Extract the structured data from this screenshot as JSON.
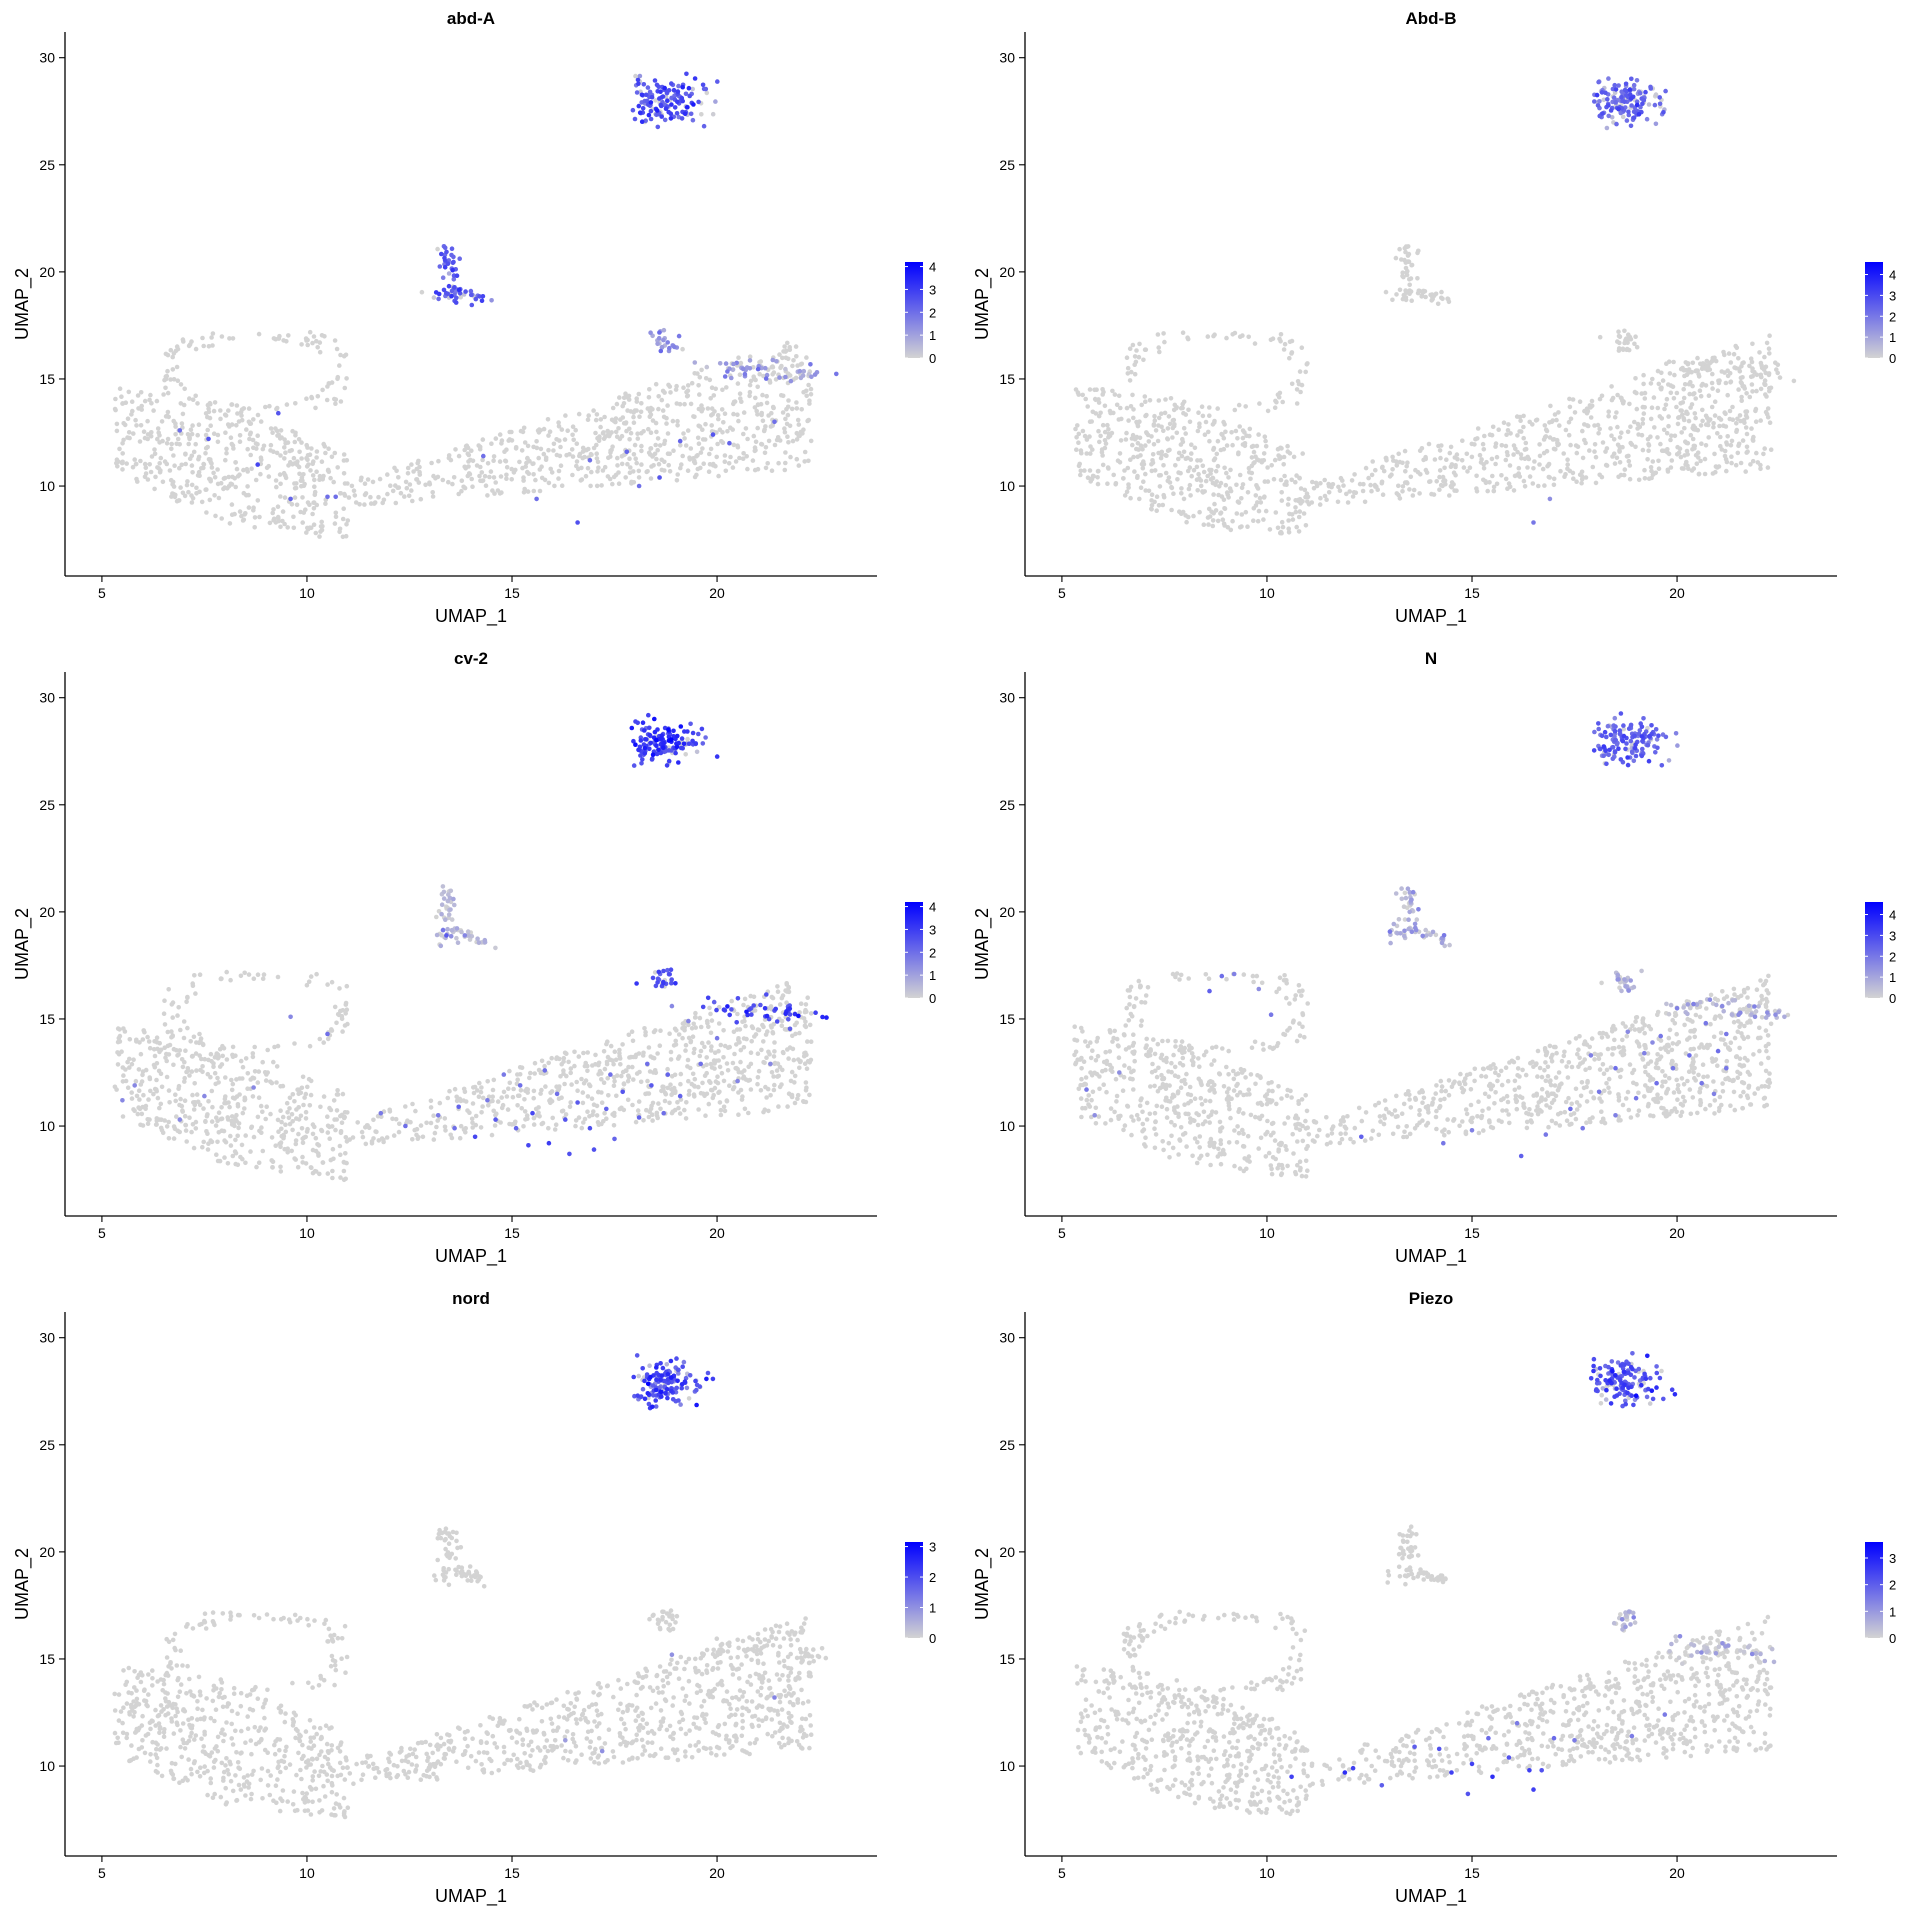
{
  "chart_data": [
    {
      "type": "scatter",
      "title": "abd-A",
      "xlabel": "UMAP_1",
      "ylabel": "UMAP_2",
      "xlim": [
        4.1,
        23.9
      ],
      "ylim": [
        5.8,
        31.2
      ],
      "xticks": [
        5,
        10,
        15,
        20
      ],
      "yticks": [
        10,
        15,
        20,
        25,
        30
      ],
      "grid": false,
      "color_min": "#d3d3d3",
      "color_max": "#0000ff",
      "legend": {
        "position": "right",
        "ticks": [
          0,
          1,
          2,
          3,
          4
        ],
        "max": 4.2
      },
      "seed": 11,
      "cluster_levels": {
        "top": 2.6,
        "mid": 2.4,
        "ext": 1.2,
        "main": 0.0
      },
      "highlights": [
        [
          9.3,
          13.4,
          2.5
        ],
        [
          8.8,
          11,
          2.8
        ],
        [
          10.7,
          9.5,
          2
        ],
        [
          10.5,
          9.5,
          2
        ],
        [
          9.6,
          9.4,
          2.2
        ],
        [
          7.6,
          12.2,
          2.5
        ],
        [
          6.9,
          12.6,
          2
        ],
        [
          16.6,
          8.3,
          2.6
        ],
        [
          15.6,
          9.4,
          2
        ],
        [
          14.3,
          11.4,
          2
        ],
        [
          17.8,
          11.6,
          2.2
        ],
        [
          18.1,
          10,
          2
        ],
        [
          19.1,
          12.1,
          2.2
        ],
        [
          19.9,
          12.4,
          2.5
        ],
        [
          20.3,
          12,
          2.2
        ],
        [
          21.4,
          13,
          2
        ],
        [
          18.6,
          10.4,
          2.5
        ],
        [
          16.9,
          11.2,
          2
        ],
        [
          21.8,
          14.9,
          1.3
        ],
        [
          22.3,
          15.1,
          1.2
        ],
        [
          20.8,
          15.5,
          1.2
        ],
        [
          20.4,
          15.7,
          1.2
        ]
      ]
    },
    {
      "type": "scatter",
      "title": "Abd-B",
      "xlabel": "UMAP_1",
      "ylabel": "UMAP_2",
      "xlim": [
        4.1,
        23.9
      ],
      "ylim": [
        5.8,
        31.2
      ],
      "xticks": [
        5,
        10,
        15,
        20
      ],
      "yticks": [
        10,
        15,
        20,
        25,
        30
      ],
      "grid": false,
      "color_min": "#d3d3d3",
      "color_max": "#0000ff",
      "legend": {
        "position": "right",
        "ticks": [
          0,
          1,
          2,
          3,
          4
        ],
        "max": 4.6
      },
      "seed": 23,
      "cluster_levels": {
        "top": 2.3,
        "mid": 0.0,
        "ext": 0.0,
        "main": 0.0
      },
      "highlights": [
        [
          16.5,
          8.3,
          2
        ],
        [
          16.9,
          9.4,
          1.5
        ]
      ]
    },
    {
      "type": "scatter",
      "title": "cv-2",
      "xlabel": "UMAP_1",
      "ylabel": "UMAP_2",
      "xlim": [
        4.1,
        23.9
      ],
      "ylim": [
        5.8,
        31.2
      ],
      "xticks": [
        5,
        10,
        15,
        20
      ],
      "yticks": [
        10,
        15,
        20,
        25,
        30
      ],
      "grid": false,
      "color_min": "#d3d3d3",
      "color_max": "#0000ff",
      "legend": {
        "position": "right",
        "ticks": [
          0,
          1,
          2,
          3,
          4
        ],
        "max": 4.2
      },
      "seed": 37,
      "cluster_levels": {
        "top": 2.9,
        "mid": 0.4,
        "ext": 2.8,
        "main": 0.0
      },
      "highlights": [
        [
          13.4,
          18.9,
          2.4
        ],
        [
          5.5,
          11.2,
          1.5
        ],
        [
          5.8,
          11.9,
          1.5
        ],
        [
          6.9,
          10.3,
          1.5
        ],
        [
          7.5,
          11.4,
          1.5
        ],
        [
          8.7,
          11.8,
          1.5
        ],
        [
          10.5,
          14.3,
          2
        ],
        [
          9.6,
          15.1,
          1.5
        ],
        [
          11.8,
          10.6,
          1.8
        ],
        [
          12.4,
          10,
          2
        ],
        [
          13.2,
          10.5,
          1.8
        ],
        [
          13.7,
          10.9,
          2.2
        ],
        [
          14.1,
          9.5,
          2.8
        ],
        [
          14.6,
          10.3,
          2.4
        ],
        [
          15.1,
          9.9,
          2.2
        ],
        [
          15.5,
          10.6,
          2.8
        ],
        [
          15.9,
          9.2,
          3
        ],
        [
          16.3,
          10.3,
          2.5
        ],
        [
          16.6,
          11.1,
          2.4
        ],
        [
          16.9,
          9.9,
          2.6
        ],
        [
          17.3,
          10.8,
          2.2
        ],
        [
          17.7,
          11.6,
          2.5
        ],
        [
          18.1,
          10.4,
          2.2
        ],
        [
          18.4,
          11.9,
          2.4
        ],
        [
          18.8,
          12.4,
          2.2
        ],
        [
          19.1,
          11.4,
          2.2
        ],
        [
          19.6,
          12.9,
          2
        ],
        [
          20,
          14.1,
          1.8
        ],
        [
          18.3,
          12.9,
          2
        ],
        [
          17.4,
          12.4,
          2
        ],
        [
          16.1,
          11.5,
          2
        ],
        [
          15.2,
          11.9,
          2
        ],
        [
          14.8,
          12.4,
          1.8
        ],
        [
          16.4,
          8.7,
          2.6
        ],
        [
          17,
          8.9,
          2.6
        ],
        [
          15.4,
          9.1,
          2.8
        ],
        [
          13.6,
          9.9,
          2
        ],
        [
          18.9,
          15.6,
          1.5
        ],
        [
          19.3,
          14.9,
          1.6
        ],
        [
          20.5,
          12.1,
          1.6
        ],
        [
          21.3,
          12.9,
          1.5
        ],
        [
          17.5,
          9.4,
          2.2
        ],
        [
          18.7,
          10.6,
          2
        ],
        [
          14.4,
          11.2,
          1.8
        ],
        [
          15.8,
          12.6,
          2
        ]
      ]
    },
    {
      "type": "scatter",
      "title": "N",
      "xlabel": "UMAP_1",
      "ylabel": "UMAP_2",
      "xlim": [
        4.1,
        23.9
      ],
      "ylim": [
        5.8,
        31.2
      ],
      "xticks": [
        5,
        10,
        15,
        20
      ],
      "yticks": [
        10,
        15,
        20,
        25,
        30
      ],
      "grid": false,
      "color_min": "#d3d3d3",
      "color_max": "#0000ff",
      "legend": {
        "position": "right",
        "ticks": [
          0,
          1,
          2,
          3,
          4
        ],
        "max": 4.6
      },
      "seed": 51,
      "cluster_levels": {
        "top": 2.4,
        "mid": 0.9,
        "ext": 0.6,
        "main": 0.0
      },
      "highlights": [
        [
          5.6,
          11.7,
          2
        ],
        [
          5.8,
          10.5,
          1.5
        ],
        [
          8.6,
          16.3,
          2.5
        ],
        [
          8.9,
          17,
          2.2
        ],
        [
          9.2,
          17.1,
          1.8
        ],
        [
          9.8,
          16.4,
          1.5
        ],
        [
          10.1,
          15.2,
          2
        ],
        [
          6.4,
          12.5,
          1.5
        ],
        [
          12.3,
          9.5,
          2.5
        ],
        [
          14.3,
          9.2,
          2
        ],
        [
          15,
          9.8,
          1.8
        ],
        [
          16.2,
          8.6,
          2.5
        ],
        [
          16.8,
          9.6,
          2
        ],
        [
          17.4,
          10.8,
          2.2
        ],
        [
          18.1,
          11.6,
          2
        ],
        [
          18.5,
          12.7,
          2.2
        ],
        [
          19,
          11.3,
          2
        ],
        [
          19.5,
          12,
          2.2
        ],
        [
          19.9,
          12.7,
          2
        ],
        [
          20.3,
          13.3,
          2.2
        ],
        [
          20.6,
          12,
          2
        ],
        [
          21,
          13.5,
          2.2
        ],
        [
          21.2,
          14.3,
          2
        ],
        [
          20.7,
          14.8,
          2
        ],
        [
          20,
          15.5,
          1.8
        ],
        [
          20.4,
          15.7,
          1.8
        ],
        [
          21.5,
          15.2,
          1.6
        ],
        [
          21.9,
          15.1,
          1.5
        ],
        [
          22.2,
          15.3,
          1.5
        ],
        [
          22.4,
          15.2,
          1.5
        ],
        [
          21.1,
          15.6,
          1.6
        ],
        [
          20.8,
          15.9,
          1.6
        ],
        [
          19.6,
          14.2,
          2
        ],
        [
          19.2,
          13.4,
          1.8
        ],
        [
          18.8,
          14.4,
          1.6
        ],
        [
          17.9,
          13.3,
          1.8
        ],
        [
          20.9,
          11.5,
          1.8
        ],
        [
          21.2,
          12.7,
          2
        ],
        [
          19.4,
          13.9,
          1.6
        ],
        [
          18.5,
          10.5,
          1.8
        ],
        [
          17.7,
          9.9,
          2
        ]
      ]
    },
    {
      "type": "scatter",
      "title": "nord",
      "xlabel": "UMAP_1",
      "ylabel": "UMAP_2",
      "xlim": [
        4.1,
        23.9
      ],
      "ylim": [
        5.8,
        31.2
      ],
      "xticks": [
        5,
        10,
        15,
        20
      ],
      "yticks": [
        10,
        15,
        20,
        25,
        30
      ],
      "grid": false,
      "color_min": "#d3d3d3",
      "color_max": "#0000ff",
      "legend": {
        "position": "right",
        "ticks": [
          0,
          1,
          2,
          3
        ],
        "max": 3.15
      },
      "seed": 67,
      "cluster_levels": {
        "top": 2.0,
        "mid": 0.0,
        "ext": 0.0,
        "main": 0.0
      },
      "highlights": [
        [
          18.9,
          15.2,
          1
        ],
        [
          21.4,
          13.2,
          1.2
        ],
        [
          17.2,
          10.7,
          1
        ],
        [
          16.3,
          11.2,
          0.8
        ]
      ]
    },
    {
      "type": "scatter",
      "title": "Piezo",
      "xlabel": "UMAP_1",
      "ylabel": "UMAP_2",
      "xlim": [
        4.1,
        23.9
      ],
      "ylim": [
        5.8,
        31.2
      ],
      "xticks": [
        5,
        10,
        15,
        20
      ],
      "yticks": [
        10,
        15,
        20,
        25,
        30
      ],
      "grid": false,
      "color_min": "#d3d3d3",
      "color_max": "#0000ff",
      "legend": {
        "position": "right",
        "ticks": [
          0,
          1,
          2,
          3
        ],
        "max": 3.6
      },
      "seed": 79,
      "cluster_levels": {
        "top": 2.2,
        "mid": 0.0,
        "ext": 0.3,
        "main": 0.0
      },
      "highlights": [
        [
          10.6,
          9.5,
          2.5
        ],
        [
          11.9,
          9.7,
          2.8
        ],
        [
          12.1,
          9.9,
          2.5
        ],
        [
          13.6,
          10.9,
          2
        ],
        [
          14.2,
          10.8,
          2.2
        ],
        [
          14.5,
          9.7,
          2.5
        ],
        [
          15,
          10.1,
          2.5
        ],
        [
          15.5,
          9.5,
          2.8
        ],
        [
          15.9,
          10.4,
          2.2
        ],
        [
          16.4,
          9.8,
          2.5
        ],
        [
          16.7,
          9.8,
          2.2
        ],
        [
          17,
          11.3,
          1.8
        ],
        [
          17.5,
          11.2,
          1.5
        ],
        [
          18.9,
          11.4,
          1.5
        ],
        [
          19.7,
          12.4,
          1.5
        ],
        [
          16.1,
          12,
          1.5
        ],
        [
          15.4,
          11.3,
          1.8
        ],
        [
          16.5,
          8.9,
          2.5
        ],
        [
          12.8,
          9.1,
          2
        ],
        [
          14.9,
          8.7,
          2.2
        ]
      ]
    }
  ]
}
